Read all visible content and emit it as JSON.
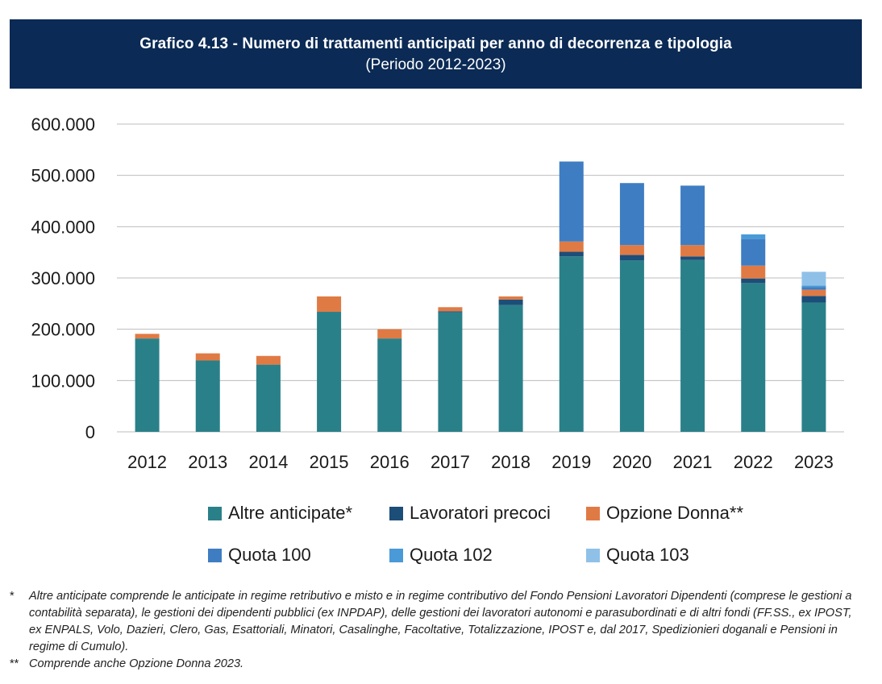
{
  "header": {
    "title": "Grafico 4.13 - Numero di trattamenti anticipati per anno di decorrenza e tipologia",
    "subtitle": "(Periodo 2012-2023)"
  },
  "chart_data": {
    "type": "bar",
    "stacked": true,
    "categories": [
      "2012",
      "2013",
      "2014",
      "2015",
      "2016",
      "2017",
      "2018",
      "2019",
      "2020",
      "2021",
      "2022",
      "2023"
    ],
    "ylim": [
      0,
      600000
    ],
    "yticks": [
      0,
      100000,
      200000,
      300000,
      400000,
      500000,
      600000
    ],
    "ytick_labels": [
      "0",
      "100.000",
      "200.000",
      "300.000",
      "400.000",
      "500.000",
      "600.000"
    ],
    "grid": true,
    "legend_position": "bottom",
    "series": [
      {
        "name": "Altre anticipate*",
        "color": "#2a8089",
        "values": [
          182000,
          139000,
          131000,
          234000,
          182000,
          233000,
          247000,
          342000,
          334000,
          335000,
          290000,
          252000
        ]
      },
      {
        "name": "Lavoratori precoci",
        "color": "#1c4e78",
        "values": [
          0,
          0,
          0,
          0,
          0,
          2000,
          11000,
          9000,
          11000,
          7000,
          9000,
          13000
        ]
      },
      {
        "name": "Opzione Donna**",
        "color": "#e07a44",
        "values": [
          9000,
          14000,
          17000,
          30000,
          18000,
          8000,
          6000,
          20000,
          19000,
          22000,
          25000,
          12000
        ]
      },
      {
        "name": "Quota 100",
        "color": "#3f7dc2",
        "values": [
          0,
          0,
          0,
          0,
          0,
          0,
          0,
          156000,
          121000,
          116000,
          52000,
          5000
        ]
      },
      {
        "name": "Quota 102",
        "color": "#4a9ad8",
        "values": [
          0,
          0,
          0,
          0,
          0,
          0,
          0,
          0,
          0,
          0,
          9000,
          3000
        ]
      },
      {
        "name": "Quota 103",
        "color": "#8fc1e8",
        "values": [
          0,
          0,
          0,
          0,
          0,
          0,
          0,
          0,
          0,
          0,
          0,
          27000
        ]
      }
    ]
  },
  "notes": [
    {
      "mark": "*",
      "text": "Altre anticipate comprende le anticipate in regime retributivo e misto e in regime contributivo del Fondo Pensioni Lavoratori Dipendenti (comprese le gestioni a contabilità separata), le gestioni dei dipendenti pubblici (ex INPDAP), delle gestioni dei lavoratori autonomi e parasubordinati e di altri fondi (FF.SS., ex IPOST, ex ENPALS, Volo, Dazieri, Clero, Gas, Esattoriali, Minatori, Casalinghe, Facoltative, Totalizzazione, IPOST e, dal 2017, Spedizionieri doganali e Pensioni in regime di Cumulo)."
    },
    {
      "mark": "**",
      "text": "Comprende anche Opzione Donna 2023."
    }
  ]
}
